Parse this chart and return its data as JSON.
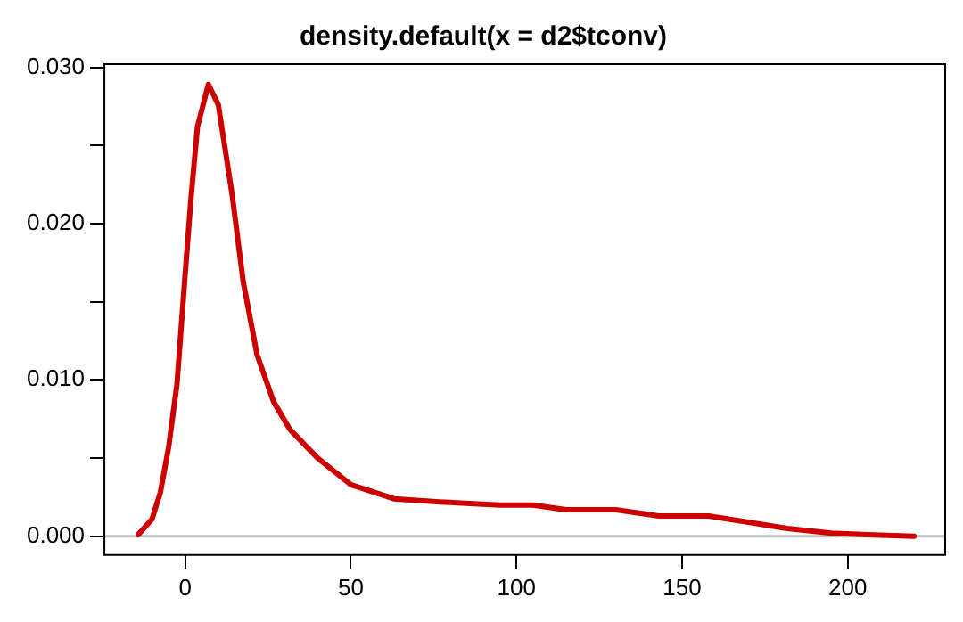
{
  "chart_data": {
    "type": "line",
    "title": "density.default(x = d2$tconv)",
    "x": [
      -14.2,
      -10,
      -7.5,
      -5,
      -2.5,
      0,
      1.7,
      3.7,
      7,
      10,
      14.2,
      17.5,
      21.7,
      26.7,
      31.7,
      40,
      50,
      63,
      76.7,
      95,
      105,
      115,
      130,
      143,
      158,
      170,
      181.7,
      195,
      206,
      220
    ],
    "series": [
      {
        "color": "#cc0000",
        "values": [
          0.0001,
          0.0011,
          0.0028,
          0.0057,
          0.0097,
          0.0168,
          0.0215,
          0.0262,
          0.0289,
          0.0276,
          0.0218,
          0.0163,
          0.0116,
          0.0086,
          0.0068,
          0.005,
          0.0033,
          0.0024,
          0.0022,
          0.002,
          0.002,
          0.0017,
          0.0017,
          0.0013,
          0.0013,
          0.0009,
          0.0005,
          0.0002,
          0.0001,
          0.0
        ]
      }
    ],
    "xlim": [
      -24.4,
      229.4
    ],
    "xticks": [
      0,
      50,
      100,
      150,
      200
    ],
    "ylim": [
      -0.0012,
      0.0302
    ],
    "yticks": [
      {
        "value": 0,
        "label": "0.000"
      },
      {
        "value": 0.005,
        "label": null
      },
      {
        "value": 0.01,
        "label": "0.010"
      },
      {
        "value": 0.015,
        "label": null
      },
      {
        "value": 0.02,
        "label": "0.020"
      },
      {
        "value": 0.025,
        "label": null
      },
      {
        "value": 0.03,
        "label": "0.030"
      }
    ],
    "ref_lines": [
      {
        "axis": "y",
        "value": 0,
        "color": "#bebebe"
      }
    ],
    "grid": false,
    "legend": false,
    "marker": "none",
    "line_style": "solid"
  }
}
